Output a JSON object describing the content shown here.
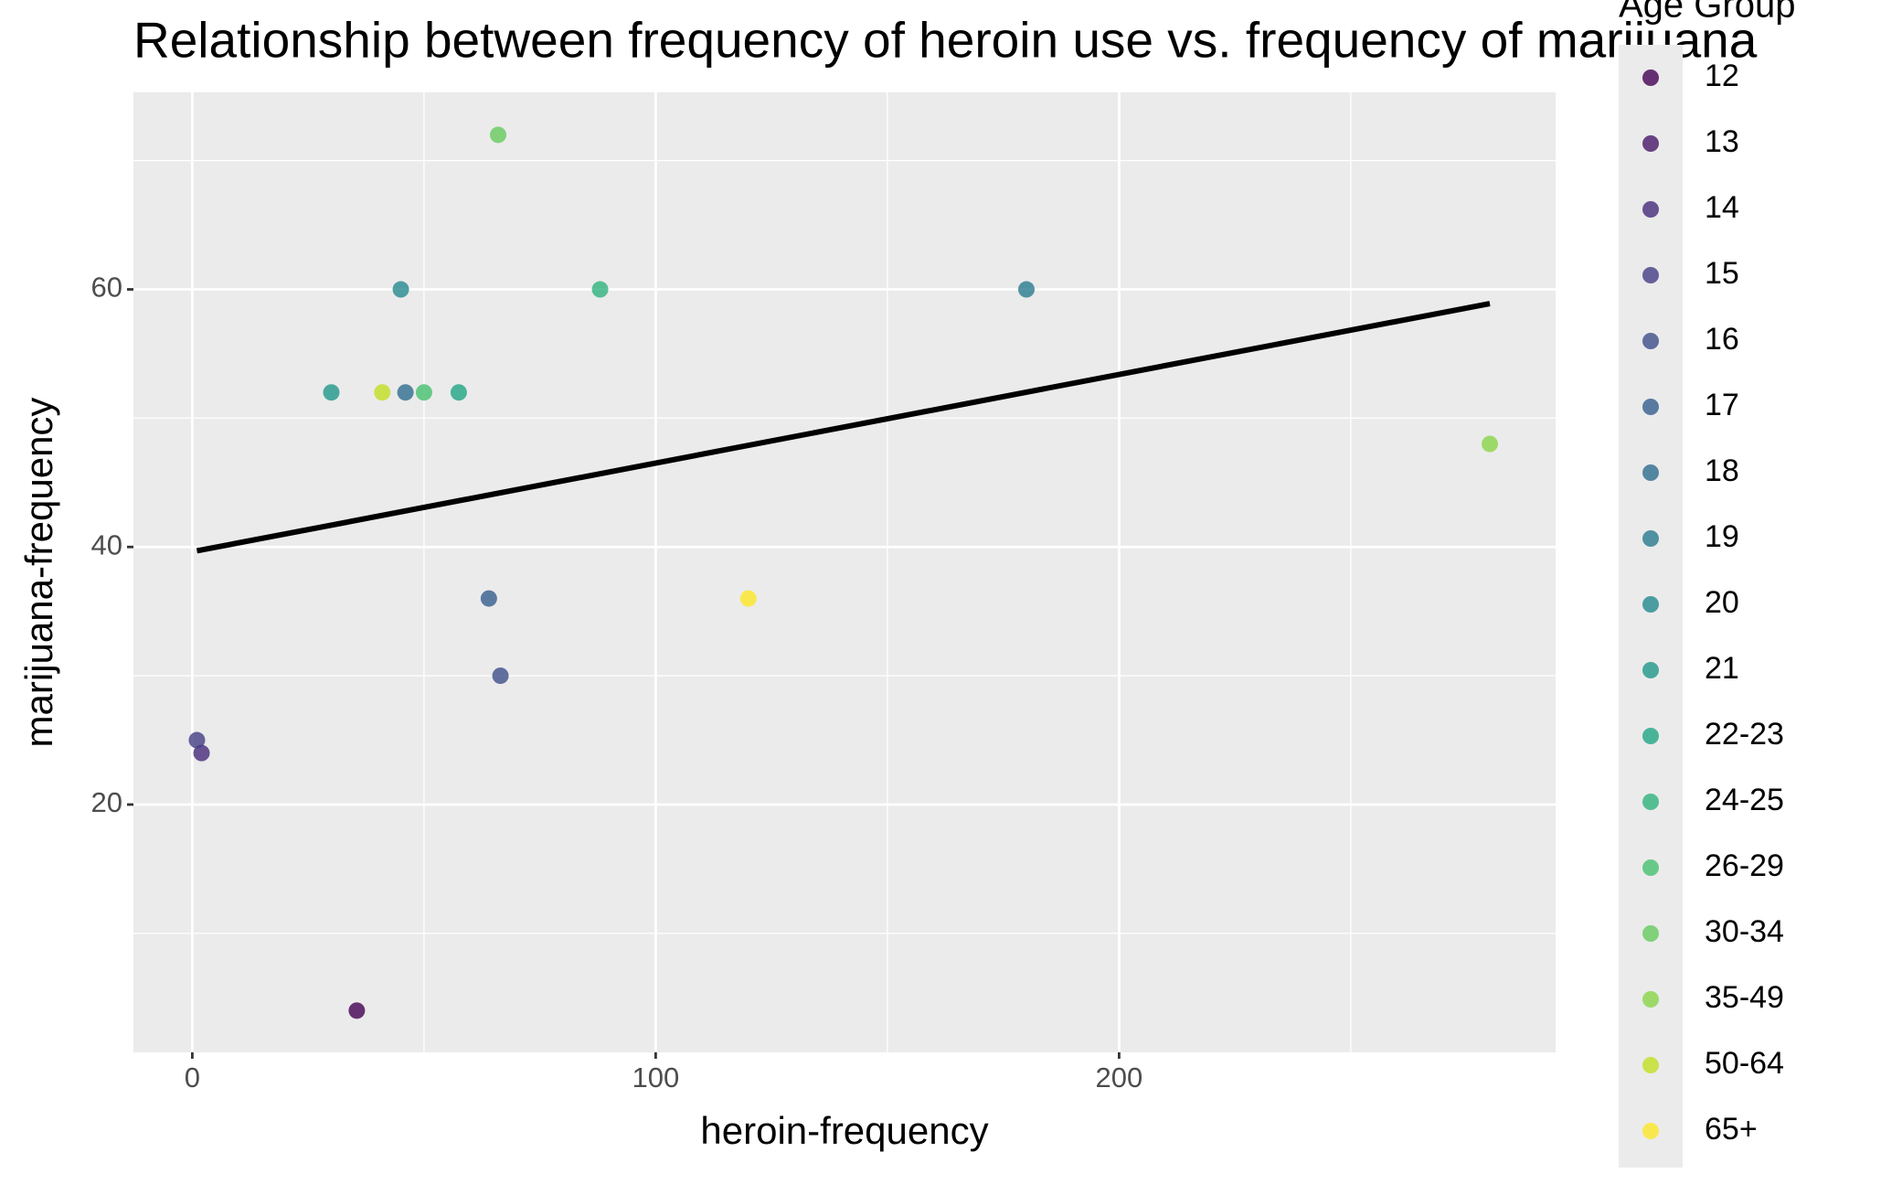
{
  "chart_data": {
    "type": "scatter",
    "title": "Relationship between frequency of heroin use vs. frequency of marijuana",
    "x_label": "heroin-frequency",
    "y_label": "marijuana-frequency",
    "legend_title": "Age Group",
    "legend": "right",
    "xlim": [
      -12.7,
      294.2
    ],
    "ylim": [
      0.76,
      75.3
    ],
    "xticks": [
      0,
      100,
      200
    ],
    "yticks": [
      20,
      40,
      60
    ],
    "x_minor_grid": [
      50,
      150,
      250
    ],
    "y_minor_grid": [
      10,
      30,
      50,
      70
    ],
    "grid": true,
    "series": [
      {
        "name": "12",
        "color": "#440154",
        "x": [
          35.5
        ],
        "values": [
          4
        ]
      },
      {
        "name": "13",
        "color": "#481769",
        "x": [],
        "values": []
      },
      {
        "name": "14",
        "color": "#472A7A",
        "x": [
          2
        ],
        "values": [
          24
        ]
      },
      {
        "name": "15",
        "color": "#433D84",
        "x": [
          1
        ],
        "values": [
          25
        ]
      },
      {
        "name": "16",
        "color": "#3D4E8A",
        "x": [
          66.5
        ],
        "values": [
          30
        ]
      },
      {
        "name": "17",
        "color": "#355E8D",
        "x": [
          64
        ],
        "values": [
          36
        ]
      },
      {
        "name": "18",
        "color": "#2E6D8E",
        "x": [
          46
        ],
        "values": [
          52
        ]
      },
      {
        "name": "19",
        "color": "#297B8E",
        "x": [
          180
        ],
        "values": [
          60
        ]
      },
      {
        "name": "20",
        "color": "#23898E",
        "x": [
          45
        ],
        "values": [
          60
        ]
      },
      {
        "name": "21",
        "color": "#1F978B",
        "x": [
          30
        ],
        "values": [
          52
        ]
      },
      {
        "name": "22-23",
        "color": "#21A585",
        "x": [
          57.5
        ],
        "values": [
          52
        ]
      },
      {
        "name": "24-25",
        "color": "#2EB37C",
        "x": [
          88
        ],
        "values": [
          60
        ]
      },
      {
        "name": "26-29",
        "color": "#46C06F",
        "x": [
          50
        ],
        "values": [
          52
        ]
      },
      {
        "name": "30-34",
        "color": "#65CB5E",
        "x": [
          66
        ],
        "values": [
          72
        ]
      },
      {
        "name": "35-49",
        "color": "#89D548",
        "x": [
          280
        ],
        "values": [
          48
        ]
      },
      {
        "name": "50-64",
        "color": "#C2DF23",
        "x": [
          41
        ],
        "values": [
          52
        ]
      },
      {
        "name": "65+",
        "color": "#FDE725",
        "x": [
          120
        ],
        "values": [
          36
        ]
      }
    ],
    "trend_line": {
      "color": "#000000",
      "x": [
        1,
        280
      ],
      "values": [
        39.7,
        58.9
      ]
    }
  }
}
